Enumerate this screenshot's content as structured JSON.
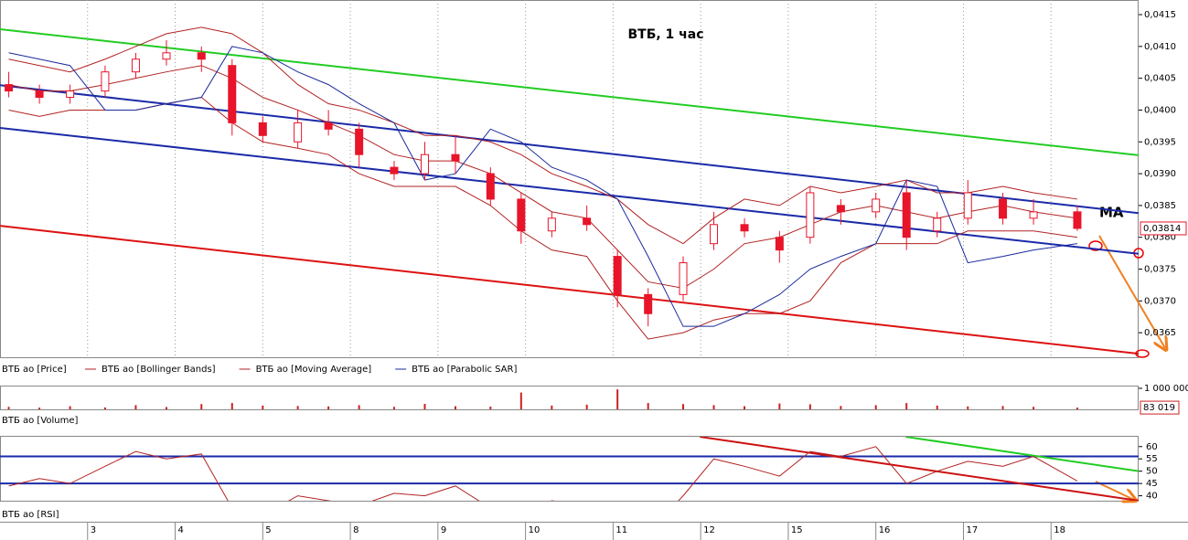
{
  "chart_data": [
    {
      "type": "candlestick",
      "title": "ВТБ, 1 час",
      "annotation": "MA",
      "price_name": "ВТБ ао [Price]",
      "color": "#e8142a",
      "x": [
        -0.9,
        -0.55,
        -0.2,
        0.2,
        0.55,
        0.9,
        1.3,
        1.65,
        2.0,
        2.4,
        2.75,
        3.1,
        3.5,
        3.85,
        4.2,
        4.6,
        4.95,
        5.3,
        5.7,
        6.05,
        6.4,
        6.8,
        7.15,
        7.5,
        7.9,
        8.25,
        8.6,
        9.0,
        9.35,
        9.7,
        10.05,
        10.45,
        10.8,
        11.3
      ],
      "open": [
        0.0404,
        0.0403,
        0.0402,
        0.0403,
        0.0406,
        0.0408,
        0.0409,
        0.0407,
        0.0398,
        0.0395,
        0.0398,
        0.0397,
        0.0391,
        0.039,
        0.0393,
        0.039,
        0.0386,
        0.0381,
        0.0383,
        0.0377,
        0.0371,
        0.0371,
        0.0379,
        0.0382,
        0.038,
        0.038,
        0.0385,
        0.0384,
        0.0387,
        0.0381,
        0.0383,
        0.0386,
        0.0383,
        0.0384
      ],
      "high": [
        0.0406,
        0.0404,
        0.0404,
        0.0407,
        0.0409,
        0.0411,
        0.041,
        0.0408,
        0.0399,
        0.04,
        0.04,
        0.0398,
        0.0392,
        0.0395,
        0.0396,
        0.0391,
        0.0387,
        0.0384,
        0.0385,
        0.0378,
        0.0372,
        0.0377,
        0.0384,
        0.0383,
        0.0381,
        0.0388,
        0.0386,
        0.0387,
        0.0389,
        0.0384,
        0.0389,
        0.0387,
        0.0386,
        0.0385
      ],
      "low": [
        0.0402,
        0.0401,
        0.0401,
        0.0402,
        0.0405,
        0.0407,
        0.0406,
        0.0396,
        0.0395,
        0.0394,
        0.0396,
        0.0391,
        0.0389,
        0.0389,
        0.039,
        0.0385,
        0.0379,
        0.038,
        0.0381,
        0.0369,
        0.0366,
        0.037,
        0.0378,
        0.038,
        0.0376,
        0.0379,
        0.0382,
        0.0383,
        0.0378,
        0.038,
        0.0382,
        0.0382,
        0.0382,
        0.0381
      ],
      "close": [
        0.0403,
        0.0402,
        0.0403,
        0.0406,
        0.0408,
        0.0409,
        0.0408,
        0.0398,
        0.0396,
        0.0398,
        0.0397,
        0.0393,
        0.039,
        0.0393,
        0.0392,
        0.0386,
        0.0381,
        0.0383,
        0.0382,
        0.0371,
        0.0368,
        0.0376,
        0.0382,
        0.0381,
        0.0378,
        0.0387,
        0.0384,
        0.0386,
        0.038,
        0.0383,
        0.0387,
        0.0383,
        0.0384,
        0.03814
      ],
      "series": [
        {
          "name": "ВТБ ао [Bollinger Bands]",
          "color": "#b22222",
          "upper": [
            0.0408,
            0.0407,
            0.0406,
            0.0408,
            0.041,
            0.0412,
            0.0413,
            0.0412,
            0.0409,
            0.0404,
            0.0401,
            0.04,
            0.0398,
            0.0396,
            0.0396,
            0.0395,
            0.0393,
            0.039,
            0.0388,
            0.0386,
            0.0382,
            0.0379,
            0.0383,
            0.0386,
            0.0385,
            0.0388,
            0.0387,
            0.0388,
            0.0389,
            0.0387,
            0.0387,
            0.0388,
            0.0387,
            0.0386
          ],
          "lower": [
            0.04,
            0.0399,
            0.04,
            0.04,
            0.04,
            0.0401,
            0.0402,
            0.0398,
            0.0395,
            0.0394,
            0.0393,
            0.039,
            0.0388,
            0.0388,
            0.0388,
            0.0385,
            0.0381,
            0.0378,
            0.0377,
            0.037,
            0.0364,
            0.0365,
            0.0367,
            0.0368,
            0.0368,
            0.037,
            0.0376,
            0.0379,
            0.0379,
            0.0379,
            0.0381,
            0.0381,
            0.0381,
            0.038
          ]
        },
        {
          "name": "ВТБ ао [Moving Average]",
          "color": "#b22222",
          "values": [
            0.0404,
            0.0403,
            0.0403,
            0.0404,
            0.0405,
            0.0406,
            0.0407,
            0.0405,
            0.0402,
            0.04,
            0.0398,
            0.0396,
            0.0393,
            0.0392,
            0.0392,
            0.039,
            0.0387,
            0.0384,
            0.0383,
            0.0378,
            0.0373,
            0.0372,
            0.0375,
            0.0379,
            0.038,
            0.0382,
            0.0384,
            0.0385,
            0.0384,
            0.0383,
            0.0384,
            0.0385,
            0.0384,
            0.0383
          ]
        },
        {
          "name": "ВТБ ао [Parabolic SAR]",
          "color": "#1a2a9c",
          "values": [
            0.0409,
            0.0408,
            0.0407,
            0.04,
            0.04,
            0.0401,
            0.0402,
            0.041,
            0.0409,
            0.0406,
            0.0404,
            0.0401,
            0.0398,
            0.0389,
            0.039,
            0.0397,
            0.0395,
            0.0391,
            0.0389,
            0.0386,
            0.0377,
            0.0366,
            0.0366,
            0.0368,
            0.0371,
            0.0375,
            0.0377,
            0.0379,
            0.0389,
            0.0388,
            0.0376,
            0.0377,
            0.0378,
            0.0379
          ]
        }
      ],
      "trend_lines": [
        {
          "color": "#22cc22",
          "x": [
            -1,
            12
          ],
          "y": [
            0.04127,
            0.03929
          ]
        },
        {
          "color": "#1a2aa8",
          "x": [
            -1,
            12
          ],
          "y": [
            0.04039,
            0.03838
          ]
        },
        {
          "color": "#1a2aa8",
          "x": [
            -1,
            12
          ],
          "y": [
            0.03972,
            0.03774
          ]
        },
        {
          "color": "#dd1111",
          "x": [
            -1,
            12
          ],
          "y": [
            0.03818,
            0.03617
          ]
        }
      ],
      "last_label": {
        "value": 0.03814,
        "label": "0,03814"
      },
      "xlim": [
        -1,
        12
      ],
      "ylim": [
        0.0361,
        0.04173
      ],
      "yticks": [
        {
          "value": 0.0365,
          "label": "0,0365"
        },
        {
          "value": 0.037,
          "label": "0,0370"
        },
        {
          "value": 0.0375,
          "label": "0,0375"
        },
        {
          "value": 0.038,
          "label": "0,0380"
        },
        {
          "value": 0.0385,
          "label": "0,0385"
        },
        {
          "value": 0.039,
          "label": "0,0390"
        },
        {
          "value": 0.0395,
          "label": "0,0395"
        },
        {
          "value": 0.04,
          "label": "0,0400"
        },
        {
          "value": 0.0405,
          "label": "0,0405"
        },
        {
          "value": 0.041,
          "label": "0,0410"
        },
        {
          "value": 0.0415,
          "label": "0,0415"
        }
      ],
      "grid": true
    },
    {
      "type": "bar",
      "name": "ВТБ ао [Volume]",
      "color": "#cc2222",
      "values": [
        120000,
        80000,
        150000,
        90000,
        200000,
        110000,
        250000,
        300000,
        180000,
        160000,
        140000,
        200000,
        120000,
        260000,
        150000,
        130000,
        800000,
        180000,
        220000,
        950000,
        300000,
        250000,
        200000,
        150000,
        280000,
        240000,
        160000,
        200000,
        300000,
        180000,
        140000,
        160000,
        120000,
        83019
      ],
      "last_label": {
        "value": 83019,
        "label": "83 019"
      },
      "ylim": [
        0,
        1130000
      ],
      "yticks": [
        {
          "value": 1000000,
          "label": "1 000 000"
        }
      ]
    },
    {
      "type": "line",
      "series": [
        {
          "name": "ВТБ ао [RSI]",
          "color": "#b22222",
          "values": [
            44,
            47,
            45,
            52,
            58,
            55,
            57,
            35,
            32,
            40,
            38,
            36,
            41,
            40,
            44,
            35,
            30,
            38,
            36,
            28,
            25,
            40,
            55,
            52,
            48,
            58,
            56,
            60,
            45,
            50,
            54,
            52,
            56,
            46
          ]
        }
      ],
      "levels": [
        56,
        45
      ],
      "level_color": "#1a2aa8",
      "trend_lines": [
        {
          "color": "#cc1111",
          "x": [
            6.99,
            12
          ],
          "y": [
            64,
            38
          ]
        },
        {
          "color": "#22cc22",
          "x": [
            9.34,
            12
          ],
          "y": [
            64,
            50
          ]
        }
      ],
      "xlim": [
        -1,
        12
      ],
      "ylim": [
        38,
        64
      ],
      "yticks": [
        40,
        45,
        50,
        55,
        60
      ],
      "xticks": [
        {
          "value": 0,
          "label": "3"
        },
        {
          "value": 1,
          "label": "4"
        },
        {
          "value": 2,
          "label": "5"
        },
        {
          "value": 3,
          "label": "8"
        },
        {
          "value": 4,
          "label": "9"
        },
        {
          "value": 5,
          "label": "10"
        },
        {
          "value": 6,
          "label": "11"
        },
        {
          "value": 7,
          "label": "12"
        },
        {
          "value": 8,
          "label": "15"
        },
        {
          "value": 9,
          "label": "16"
        },
        {
          "value": 10,
          "label": "17"
        },
        {
          "value": 11,
          "label": "18"
        }
      ]
    }
  ]
}
